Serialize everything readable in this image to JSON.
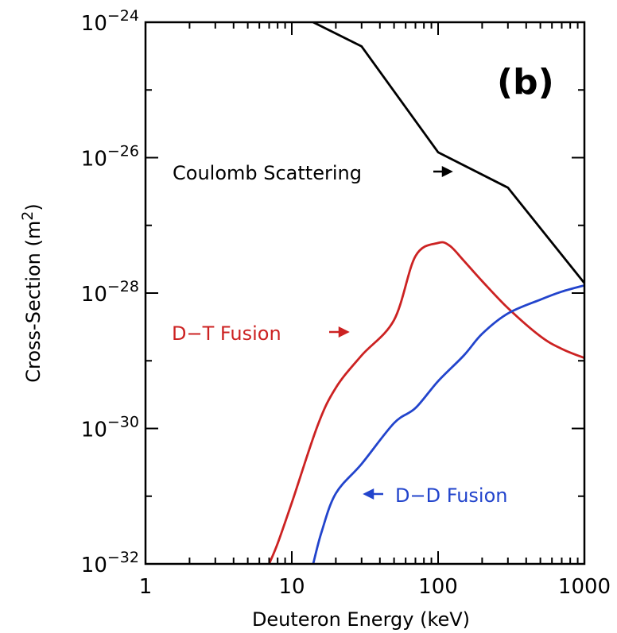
{
  "chart_data": {
    "type": "line",
    "panel_label": "(b)",
    "xlabel": "Deuteron Energy (keV)",
    "ylabel_main": "Cross-Section (m",
    "ylabel_sup": "2",
    "ylabel_end": ")",
    "x_scale": "log",
    "y_scale": "log",
    "xlim": [
      1,
      1000
    ],
    "ylim": [
      1e-32,
      1e-24
    ],
    "x_ticks": [
      {
        "value": 1,
        "label": "1"
      },
      {
        "value": 10,
        "label": "10"
      },
      {
        "value": 100,
        "label": "100"
      },
      {
        "value": 1000,
        "label": "1000"
      }
    ],
    "y_ticks": [
      {
        "value": 1e-24,
        "base": "10",
        "exp": "−24"
      },
      {
        "value": 1e-26,
        "base": "10",
        "exp": "−26"
      },
      {
        "value": 1e-28,
        "base": "10",
        "exp": "−28"
      },
      {
        "value": 1e-30,
        "base": "10",
        "exp": "−30"
      },
      {
        "value": 1e-32,
        "base": "10",
        "exp": "−32"
      }
    ],
    "grid": false,
    "series": [
      {
        "name": "Coulomb Scattering",
        "color": "#000000",
        "x": [
          14,
          30,
          100,
          300,
          1000
        ],
        "y": [
          1e-24,
          4.4e-25,
          1.2e-26,
          3.6e-27,
          1.4e-28
        ]
      },
      {
        "name": "D-T Fusion",
        "color": "#cc2222",
        "x": [
          7,
          8,
          10,
          15,
          20,
          30,
          50,
          70,
          100,
          120,
          150,
          200,
          300,
          500,
          700,
          1000
        ],
        "y": [
          1e-32,
          2e-32,
          8e-32,
          1.1e-30,
          4e-30,
          1.2e-29,
          4e-29,
          3.5e-28,
          5.5e-28,
          5e-28,
          3e-28,
          1.5e-28,
          6e-29,
          2.3e-29,
          1.5e-29,
          1.1e-29
        ]
      },
      {
        "name": "D-D Fusion",
        "color": "#2244cc",
        "x": [
          14,
          16,
          20,
          30,
          50,
          70,
          100,
          150,
          200,
          300,
          500,
          700,
          1000
        ],
        "y": [
          1e-32,
          3e-32,
          1.1e-31,
          3e-31,
          1.2e-30,
          2e-30,
          5e-30,
          1.2e-29,
          2.5e-29,
          5e-29,
          8e-29,
          1.05e-28,
          1.3e-28
        ]
      }
    ],
    "annotations": [
      {
        "text": "Coulomb Scattering",
        "arrow": "right",
        "color": "#000000"
      },
      {
        "text": "D−T Fusion",
        "arrow": "right",
        "color": "#cc2222"
      },
      {
        "text": "D−D Fusion",
        "arrow": "left",
        "color": "#2244cc"
      }
    ]
  }
}
